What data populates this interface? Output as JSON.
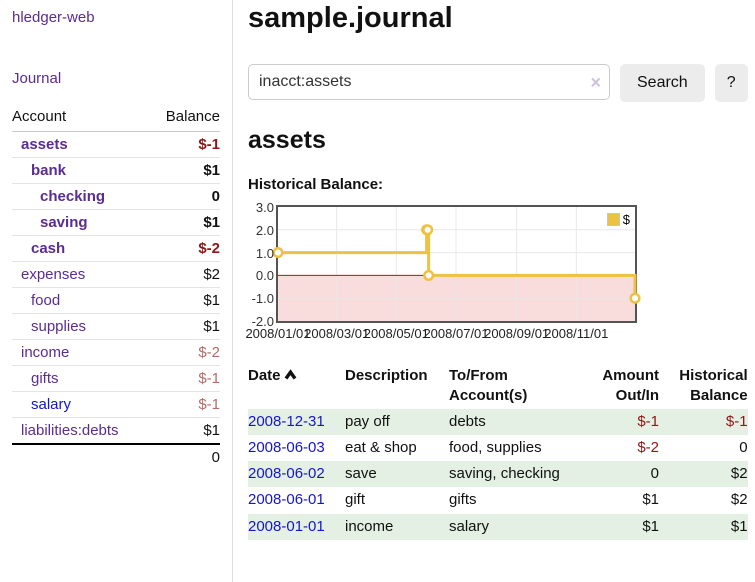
{
  "app": {
    "title": "hledger-web",
    "nav_journal": "Journal"
  },
  "sidebar": {
    "header": {
      "account": "Account",
      "balance": "Balance"
    },
    "accounts": [
      {
        "name": "assets",
        "balance": "$-1",
        "level": 1,
        "current": true,
        "neg_strong": true
      },
      {
        "name": "bank",
        "balance": "$1",
        "level": 2,
        "current": true
      },
      {
        "name": "checking",
        "balance": "0",
        "level": 3,
        "current": true
      },
      {
        "name": "saving",
        "balance": "$1",
        "level": 3,
        "current": true
      },
      {
        "name": "cash",
        "balance": "$-2",
        "level": 2,
        "current": true,
        "neg_strong": true
      },
      {
        "name": "expenses",
        "balance": "$2",
        "level": 1
      },
      {
        "name": "food",
        "balance": "$1",
        "level": 2
      },
      {
        "name": "supplies",
        "balance": "$1",
        "level": 2
      },
      {
        "name": "income",
        "balance": "$-2",
        "level": 1,
        "neg_soft": true
      },
      {
        "name": "gifts",
        "balance": "$-1",
        "level": 2,
        "neg_soft": true
      },
      {
        "name": "salary",
        "balance": "$-1",
        "level": 2,
        "neg_soft": true,
        "link_blue": true
      },
      {
        "name": "liabilities:debts",
        "balance": "$1",
        "level": 1
      }
    ],
    "total": "0"
  },
  "main": {
    "title": "sample.journal",
    "search": {
      "value": "inacct:assets",
      "clear_icon": "×",
      "search_button": "Search",
      "help_button": "?"
    },
    "account_heading": "assets",
    "chart_heading": "Historical Balance:"
  },
  "chart_data": {
    "type": "line",
    "step": true,
    "title": "Historical Balance",
    "series": [
      {
        "name": "$",
        "color": "#edc240",
        "points": [
          [
            "2008-01-01",
            1
          ],
          [
            "2008-06-01",
            2
          ],
          [
            "2008-06-02",
            2
          ],
          [
            "2008-06-03",
            0
          ],
          [
            "2008-12-31",
            -1
          ]
        ]
      }
    ],
    "x_range": [
      "2008-01-01",
      "2008-12-31"
    ],
    "x_ticks": [
      "2008/01/01",
      "2008/03/01",
      "2008/05/01",
      "2008/07/01",
      "2008/09/01",
      "2008/11/01"
    ],
    "y_ticks": [
      "3.0",
      "2.0",
      "1.0",
      "0.0",
      "-1.0",
      "-2.0"
    ],
    "ylim": [
      -2,
      3
    ],
    "grid": true,
    "grid_color": "#e8e8e8",
    "negative_fill": "#f9dcdc",
    "zero_line_color": "#8e2323",
    "legend_position": "top-right"
  },
  "register": {
    "headers": {
      "date": "Date",
      "description": "Description",
      "accounts_line1": "To/From",
      "accounts_line2": "Account(s)",
      "amount_line1": "Amount",
      "amount_line2": "Out/In",
      "balance_line1": "Historical",
      "balance_line2": "Balance"
    },
    "sort": "ascending",
    "rows": [
      {
        "date": "2008-12-31",
        "description": "pay off",
        "accounts": "debts",
        "amount": "$-1",
        "amount_neg": true,
        "balance": "$-1",
        "balance_neg": true
      },
      {
        "date": "2008-06-03",
        "description": "eat & shop",
        "accounts": "food, supplies",
        "amount": "$-2",
        "amount_neg": true,
        "balance": "0"
      },
      {
        "date": "2008-06-02",
        "description": "save",
        "accounts": "saving, checking",
        "amount": "0",
        "balance": "$2"
      },
      {
        "date": "2008-06-01",
        "description": "gift",
        "accounts": "gifts",
        "amount": "$1",
        "balance": "$2"
      },
      {
        "date": "2008-01-01",
        "description": "income",
        "accounts": "salary",
        "amount": "$1",
        "balance": "$1"
      }
    ]
  }
}
